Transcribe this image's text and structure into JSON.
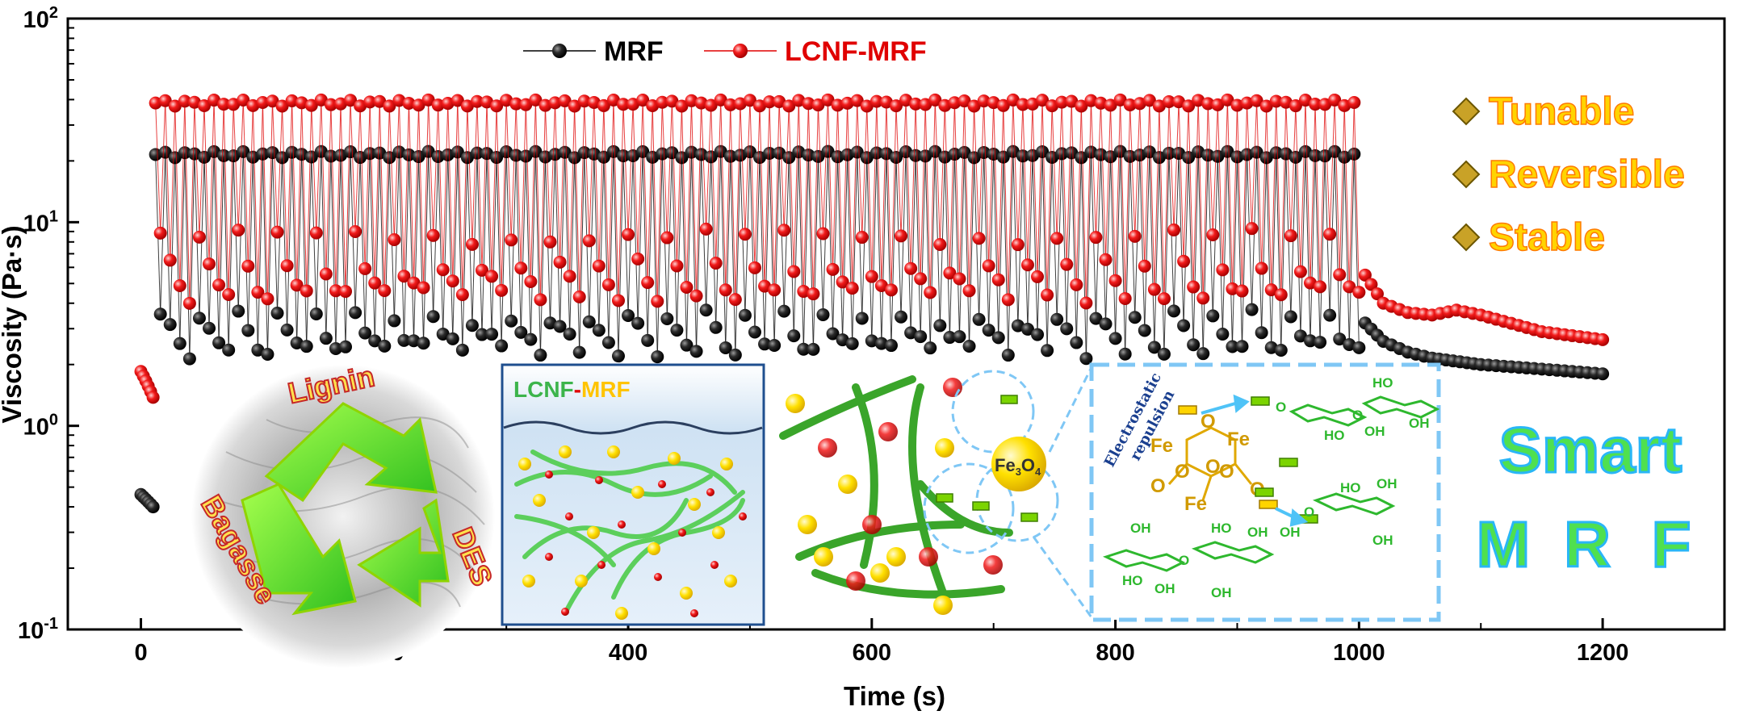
{
  "chart_data": {
    "type": "line",
    "xlabel": "Time (s)",
    "ylabel": "Viscosity (Pa·s)",
    "xlim": [
      -60,
      1300
    ],
    "ylim": [
      0.1,
      100
    ],
    "yscale": "log",
    "x_ticks": [
      "0",
      "200",
      "400",
      "600",
      "800",
      "1000",
      "1200"
    ],
    "y_tick_labels": [
      {
        "base": "10",
        "exp": "-1"
      },
      {
        "base": "10",
        "exp": "0"
      },
      {
        "base": "10",
        "exp": "1"
      },
      {
        "base": "10",
        "exp": "2"
      }
    ],
    "legend_position": "top-left",
    "grid": false,
    "series": [
      {
        "name": "MRF",
        "color": "#000000",
        "low_phase": {
          "x": [
            0,
            10
          ],
          "y": [
            0.46,
            0.4
          ]
        },
        "cycling": {
          "x_start": 12,
          "x_end": 1003,
          "period": 8,
          "on_value": 21.5,
          "off_values": [
            3.4,
            2.9,
            2.6,
            2.35
          ]
        },
        "relaxation": {
          "x": [
            1005,
            1020,
            1040,
            1060,
            1100,
            1150,
            1200
          ],
          "y": [
            3.2,
            2.6,
            2.3,
            2.15,
            2.0,
            1.9,
            1.8
          ]
        }
      },
      {
        "name": "LCNF-MRF",
        "color": "#e00000",
        "low_phase": {
          "x": [
            0,
            10
          ],
          "y": [
            1.85,
            1.38
          ]
        },
        "cycling": {
          "x_start": 12,
          "x_end": 1003,
          "period": 8,
          "on_value": 38.5,
          "off_values": [
            8.5,
            6.0,
            5.0,
            4.4
          ]
        },
        "relaxation": {
          "x": [
            1005,
            1020,
            1040,
            1060,
            1080,
            1100,
            1150,
            1200
          ],
          "y": [
            5.5,
            4.0,
            3.6,
            3.5,
            3.7,
            3.5,
            2.9,
            2.65
          ]
        }
      }
    ]
  },
  "annotations": {
    "features": [
      "Tunable",
      "Reversible",
      "Stable"
    ],
    "smart_line1": "Smart",
    "smart_letters": [
      "M",
      "R",
      "F"
    ],
    "cycle_labels": [
      "Lignin",
      "Bagasse",
      "DES"
    ],
    "inset_title_part1": "LCNF",
    "inset_title_sep": "-",
    "inset_title_part2": "MRF",
    "particle_label_main": "Fe",
    "particle_label_sub1": "3",
    "particle_label_o": "O",
    "particle_label_sub2": "4",
    "repulsion_line1": "Electrostatic",
    "repulsion_line2": "repulsion",
    "fe_labels": [
      "Fe",
      "Fe",
      "Fe"
    ],
    "o_labels": [
      "O",
      "O",
      "O",
      "O",
      "O",
      "O"
    ],
    "ho_labels": [
      "HO",
      "HO",
      "OH",
      "OH",
      "HO",
      "OH",
      "OH",
      "HO",
      "OH",
      "OH",
      "HO",
      "OH",
      "OH",
      "OH",
      "O",
      "O",
      "O",
      "O"
    ],
    "colors": {
      "accent_yellow": "#ffd400",
      "accent_orange": "#ff7a00",
      "smart_green": "#4fe04f",
      "smart_blue": "#29b6f6",
      "dashed_blue": "#7fc7f5"
    }
  }
}
